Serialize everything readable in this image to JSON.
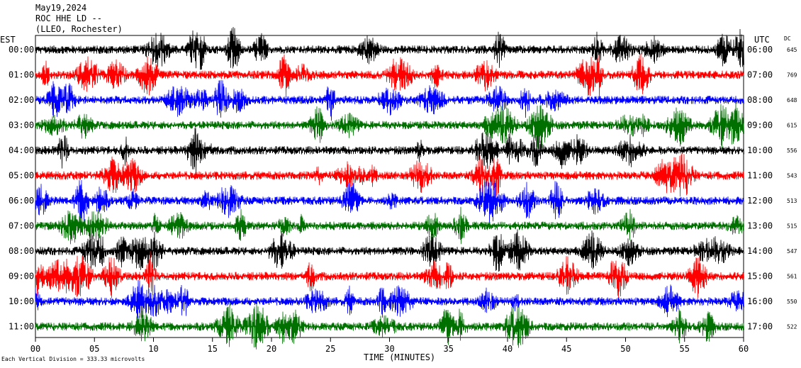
{
  "header": {
    "date": "May19,2024",
    "station": "ROC HHE LD --",
    "location": "(LLEO, Rochester)"
  },
  "chart_data": {
    "type": "line",
    "title": "May19,2024",
    "xlabel": "TIME (MINUTES)",
    "xlim": [
      0,
      60
    ],
    "x_ticks": [
      "00",
      "05",
      "10",
      "15",
      "20",
      "25",
      "30",
      "35",
      "40",
      "45",
      "50",
      "55",
      "60"
    ],
    "left_axis_label": "EST",
    "right_axis_label": "UTC",
    "dc_label": "DC",
    "rows": [
      {
        "est": "00:00",
        "utc": "06:00",
        "dc": "645",
        "color": "#000000"
      },
      {
        "est": "01:00",
        "utc": "07:00",
        "dc": "769",
        "color": "#ff0000"
      },
      {
        "est": "02:00",
        "utc": "08:00",
        "dc": "648",
        "color": "#0000ff"
      },
      {
        "est": "03:00",
        "utc": "09:00",
        "dc": "615",
        "color": "#007000"
      },
      {
        "est": "04:00",
        "utc": "10:00",
        "dc": "556",
        "color": "#000000"
      },
      {
        "est": "05:00",
        "utc": "11:00",
        "dc": "543",
        "color": "#ff0000"
      },
      {
        "est": "06:00",
        "utc": "12:00",
        "dc": "513",
        "color": "#0000ff"
      },
      {
        "est": "07:00",
        "utc": "13:00",
        "dc": "515",
        "color": "#007000"
      },
      {
        "est": "08:00",
        "utc": "14:00",
        "dc": "547",
        "color": "#000000"
      },
      {
        "est": "09:00",
        "utc": "15:00",
        "dc": "561",
        "color": "#ff0000"
      },
      {
        "est": "10:00",
        "utc": "16:00",
        "dc": "550",
        "color": "#0000ff"
      },
      {
        "est": "11:00",
        "utc": "17:00",
        "dc": "522",
        "color": "#007000"
      }
    ],
    "footer_note": "Each Vertical Division = 333.33 microvolts",
    "grid": false
  }
}
